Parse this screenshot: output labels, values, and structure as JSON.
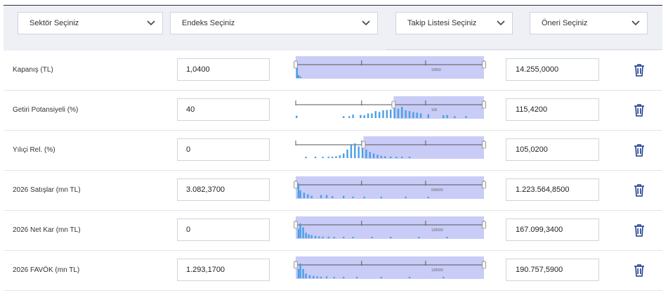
{
  "filters": {
    "sector": "Sektör Seçiniz",
    "index": "Endeks Seçiniz",
    "watchlist": "Takip Listesi Seçiniz",
    "recommendation": "Öneri Seçiniz"
  },
  "rows": [
    {
      "label": "Kapanış (TL)",
      "min": "1,0400",
      "max": "14.255,0000",
      "tick_label": "10000",
      "range": [
        0.0,
        1.0
      ],
      "marker": 0.0,
      "bars": [
        [
          0.002,
          0.95
        ],
        [
          0.01,
          0.2
        ],
        [
          0.02,
          0.1
        ]
      ]
    },
    {
      "label": "Getiri Potansiyeli (%)",
      "min": "40",
      "max": "115,4200",
      "tick_label": "100",
      "range": [
        0.52,
        1.0
      ],
      "marker": 0.52,
      "bars": [
        [
          0.0,
          0.15
        ],
        [
          0.25,
          0.12
        ],
        [
          0.28,
          0.12
        ],
        [
          0.3,
          0.22
        ],
        [
          0.34,
          0.2
        ],
        [
          0.36,
          0.18
        ],
        [
          0.38,
          0.3
        ],
        [
          0.4,
          0.3
        ],
        [
          0.42,
          0.45
        ],
        [
          0.44,
          0.4
        ],
        [
          0.46,
          0.5
        ],
        [
          0.48,
          0.52
        ],
        [
          0.5,
          0.55
        ],
        [
          0.52,
          1.0
        ],
        [
          0.54,
          0.6
        ],
        [
          0.56,
          0.72
        ],
        [
          0.58,
          0.5
        ],
        [
          0.6,
          0.45
        ],
        [
          0.62,
          0.38
        ],
        [
          0.64,
          0.35
        ],
        [
          0.66,
          0.3
        ],
        [
          0.7,
          0.25
        ],
        [
          0.78,
          0.18
        ],
        [
          0.8,
          0.2
        ],
        [
          0.84,
          0.12
        ],
        [
          0.9,
          0.12
        ]
      ]
    },
    {
      "label": "Yılıçi Rel. (%)",
      "min": "0",
      "max": "105,0200",
      "tick_label": "",
      "range": [
        0.36,
        1.0
      ],
      "marker": 0.36,
      "bars": [
        [
          0.05,
          0.05
        ],
        [
          0.1,
          0.05
        ],
        [
          0.14,
          0.05
        ],
        [
          0.17,
          0.06
        ],
        [
          0.19,
          0.08
        ],
        [
          0.21,
          0.12
        ],
        [
          0.23,
          0.18
        ],
        [
          0.25,
          0.3
        ],
        [
          0.27,
          0.55
        ],
        [
          0.29,
          0.9
        ],
        [
          0.31,
          0.95
        ],
        [
          0.33,
          0.75
        ],
        [
          0.35,
          0.85
        ],
        [
          0.37,
          0.55
        ],
        [
          0.39,
          0.4
        ],
        [
          0.41,
          0.3
        ],
        [
          0.43,
          0.22
        ],
        [
          0.45,
          0.15
        ],
        [
          0.47,
          0.12
        ],
        [
          0.5,
          0.1
        ],
        [
          0.53,
          0.08
        ],
        [
          0.56,
          0.06
        ],
        [
          0.6,
          0.05
        ]
      ]
    },
    {
      "label": "2026 Satışlar (mn TL)",
      "min": "3.082,3700",
      "max": "1.223.564,8500",
      "tick_label": "600000",
      "range": [
        0.0,
        1.0
      ],
      "marker": 0.0,
      "bars": [
        [
          0.01,
          0.95
        ],
        [
          0.02,
          0.5
        ],
        [
          0.04,
          0.35
        ],
        [
          0.06,
          0.25
        ],
        [
          0.08,
          0.15
        ],
        [
          0.13,
          0.2
        ],
        [
          0.16,
          0.2
        ],
        [
          0.19,
          0.12
        ],
        [
          0.25,
          0.15
        ],
        [
          0.3,
          0.1
        ],
        [
          0.36,
          0.1
        ],
        [
          0.45,
          0.1
        ],
        [
          0.58,
          0.1
        ],
        [
          0.7,
          0.08
        ]
      ]
    },
    {
      "label": "2026 Net Kar (mn TL)",
      "min": "0",
      "max": "167.099,3400",
      "tick_label": "120000",
      "range": [
        0.0,
        1.0
      ],
      "marker": 0.0,
      "bars": [
        [
          0.01,
          0.6
        ],
        [
          0.02,
          0.95
        ],
        [
          0.035,
          0.7
        ],
        [
          0.05,
          0.35
        ],
        [
          0.065,
          0.25
        ],
        [
          0.08,
          0.2
        ],
        [
          0.1,
          0.15
        ],
        [
          0.12,
          0.12
        ],
        [
          0.14,
          0.1
        ],
        [
          0.17,
          0.1
        ],
        [
          0.2,
          0.08
        ],
        [
          0.25,
          0.08
        ],
        [
          0.3,
          0.06
        ],
        [
          0.4,
          0.06
        ],
        [
          0.5,
          0.06
        ],
        [
          0.65,
          0.05
        ],
        [
          0.8,
          0.05
        ]
      ]
    },
    {
      "label": "2026 FAVÖK (mn TL)",
      "min": "1.293,1700",
      "max": "190.757,5900",
      "tick_label": "120000",
      "range": [
        0.0,
        1.0
      ],
      "marker": 0.0,
      "bars": [
        [
          0.01,
          0.6
        ],
        [
          0.02,
          0.95
        ],
        [
          0.035,
          0.6
        ],
        [
          0.05,
          0.3
        ],
        [
          0.07,
          0.2
        ],
        [
          0.09,
          0.15
        ],
        [
          0.11,
          0.12
        ],
        [
          0.13,
          0.1
        ],
        [
          0.16,
          0.12
        ],
        [
          0.2,
          0.08
        ],
        [
          0.25,
          0.08
        ],
        [
          0.32,
          0.06
        ],
        [
          0.45,
          0.06
        ],
        [
          0.6,
          0.05
        ],
        [
          0.78,
          0.05
        ]
      ]
    }
  ],
  "colors": {
    "bar": "#4a9fe6",
    "range_fill": "#c9ccf7",
    "axis": "#555555"
  }
}
